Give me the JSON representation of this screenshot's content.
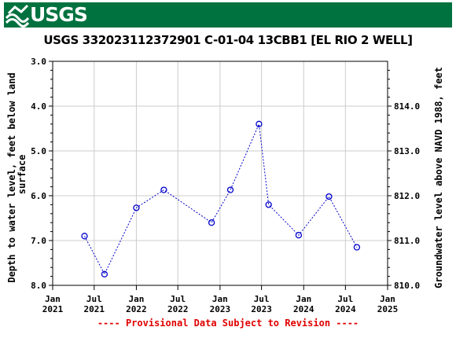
{
  "banner": {
    "logo_text": "USGS",
    "color": "#00723f"
  },
  "footnote": "---- Provisional Data Subject to Revision ----",
  "chart_data": {
    "type": "scatter",
    "title": "USGS 332023112372901 C-01-04 13CBB1  [EL RIO 2 WELL]",
    "ylabel_left_line1": "Depth to water level, feet below land",
    "ylabel_left_line2": "surface",
    "ylabel_right": "Groundwater level above NAVD 1988, feet",
    "left_axis": {
      "min": 3.0,
      "max": 8.0,
      "inverted": true,
      "ticks": [
        "3.0",
        "4.0",
        "5.0",
        "6.0",
        "7.0",
        "8.0"
      ]
    },
    "right_axis": {
      "min": 810.0,
      "max": 815.0,
      "ticks": [
        "814.0",
        "813.0",
        "812.0",
        "811.0",
        "810.0"
      ]
    },
    "x_axis": {
      "min": "2021-01-01",
      "max": "2025-01-01",
      "ticks": [
        {
          "date": "2021-01-01",
          "line1": "Jan",
          "line2": "2021"
        },
        {
          "date": "2021-07-01",
          "line1": "Jul",
          "line2": "2021"
        },
        {
          "date": "2022-01-01",
          "line1": "Jan",
          "line2": "2022"
        },
        {
          "date": "2022-07-01",
          "line1": "Jul",
          "line2": "2022"
        },
        {
          "date": "2023-01-01",
          "line1": "Jan",
          "line2": "2023"
        },
        {
          "date": "2023-07-01",
          "line1": "Jul",
          "line2": "2023"
        },
        {
          "date": "2024-01-01",
          "line1": "Jan",
          "line2": "2024"
        },
        {
          "date": "2024-07-01",
          "line1": "Jul",
          "line2": "2024"
        },
        {
          "date": "2025-01-01",
          "line1": "Jan",
          "line2": "2025"
        }
      ]
    },
    "grid": true,
    "series": [
      {
        "color": "#0000cc",
        "line": "dotted",
        "marker": "open-circle",
        "points": [
          {
            "x": "2021-05-20",
            "y": 6.9
          },
          {
            "x": "2021-08-15",
            "y": 7.75
          },
          {
            "x": "2022-01-01",
            "y": 6.27
          },
          {
            "x": "2022-05-01",
            "y": 5.87
          },
          {
            "x": "2022-11-25",
            "y": 6.6
          },
          {
            "x": "2023-02-15",
            "y": 5.87
          },
          {
            "x": "2023-06-20",
            "y": 4.4
          },
          {
            "x": "2023-08-01",
            "y": 6.2
          },
          {
            "x": "2023-12-10",
            "y": 6.88
          },
          {
            "x": "2024-04-20",
            "y": 6.02
          },
          {
            "x": "2024-08-20",
            "y": 7.15
          }
        ]
      }
    ]
  }
}
